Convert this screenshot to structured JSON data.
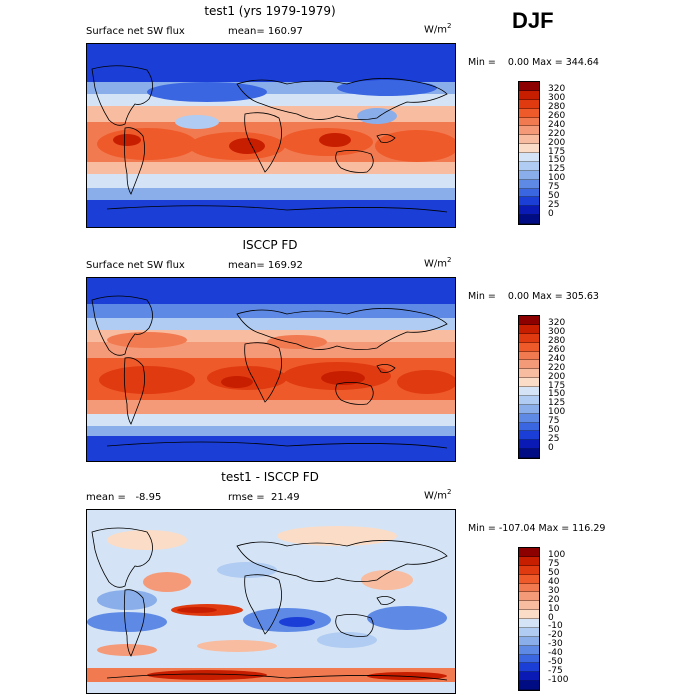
{
  "season": "DJF",
  "panels": [
    {
      "title": "test1 (yrs 1979-1979)",
      "left_label": "Surface net SW flux",
      "stat_label": "mean= 160.97",
      "units": "W/m",
      "units_exp": "2",
      "minmax": "Min =    0.00 Max = 344.64",
      "levels": [
        "320",
        "300",
        "280",
        "260",
        "240",
        "220",
        "200",
        "175",
        "150",
        "125",
        "100",
        "75",
        "50",
        "25",
        "0"
      ],
      "colors": [
        "#8c0000",
        "#c81e00",
        "#e03a10",
        "#ee5a2a",
        "#f27a50",
        "#f59a78",
        "#f8bca0",
        "#fbdcc6",
        "#d4e4f6",
        "#b0ccf2",
        "#8aaeea",
        "#5e8ae6",
        "#3a66e2",
        "#1a3ed6",
        "#0a1ab4",
        "#000c84"
      ],
      "variant": "model"
    },
    {
      "title": "ISCCP FD",
      "left_label": "Surface net SW flux",
      "stat_label": "mean= 169.92",
      "units": "W/m",
      "units_exp": "2",
      "minmax": "Min =    0.00 Max = 305.63",
      "levels": [
        "320",
        "300",
        "280",
        "260",
        "240",
        "220",
        "200",
        "175",
        "150",
        "125",
        "100",
        "75",
        "50",
        "25",
        "0"
      ],
      "colors": [
        "#8c0000",
        "#c81e00",
        "#e03a10",
        "#ee5a2a",
        "#f27a50",
        "#f59a78",
        "#f8bca0",
        "#fbdcc6",
        "#d4e4f6",
        "#b0ccf2",
        "#8aaeea",
        "#5e8ae6",
        "#3a66e2",
        "#1a3ed6",
        "#0a1ab4",
        "#000c84"
      ],
      "variant": "obs"
    },
    {
      "title": "test1 - ISCCP FD",
      "left_label": "mean =   -8.95",
      "stat_label": "rmse =  21.49",
      "units": "W/m",
      "units_exp": "2",
      "minmax": "Min = -107.04 Max = 116.29",
      "levels": [
        "100",
        "75",
        "50",
        "40",
        "30",
        "20",
        "10",
        "0",
        "-10",
        "-20",
        "-30",
        "-40",
        "-50",
        "-75",
        "-100"
      ],
      "colors": [
        "#8c0000",
        "#c81e00",
        "#e03a10",
        "#ee5a2a",
        "#f27a50",
        "#f59a78",
        "#f8bca0",
        "#fbdcc6",
        "#d4e4f6",
        "#b0ccf2",
        "#8aaeea",
        "#5e8ae6",
        "#3a66e2",
        "#1a3ed6",
        "#0a1ab4",
        "#000c84"
      ],
      "variant": "diff"
    }
  ]
}
